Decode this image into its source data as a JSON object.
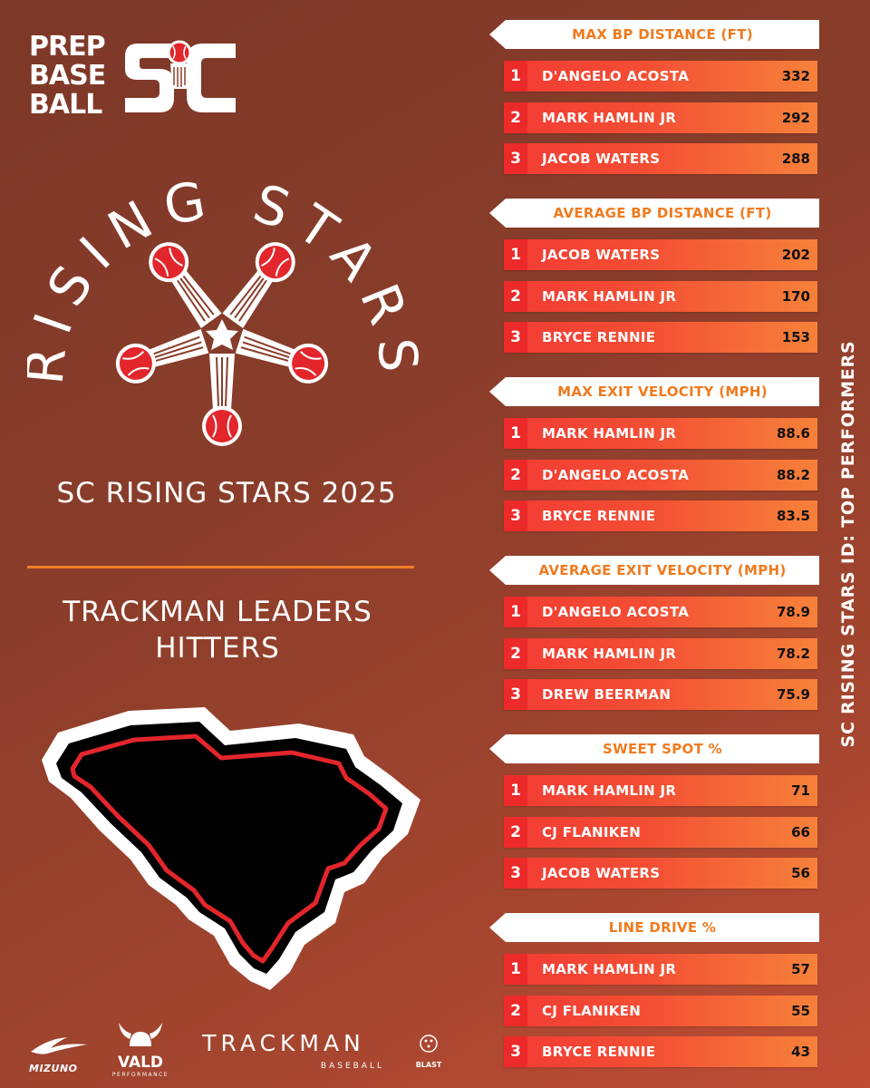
{
  "brand": {
    "logo_lines": [
      "PREP",
      "BASE",
      "BALL"
    ],
    "logo_state": "SC"
  },
  "emblem": {
    "arc_text": "RISING STARS"
  },
  "event_title": "SC RISING STARS 2025",
  "section_title_lines": [
    "TRACKMAN LEADERS",
    "HITTERS"
  ],
  "vertical_title": "SC RISING STARS ID: TOP PERFORMERS",
  "colors": {
    "accent_orange": "#f07a1e",
    "row_red": "#f33a34",
    "row_orange": "#f6813a",
    "map_outline_red": "#e2262c",
    "background": "#8a3d2a"
  },
  "sponsors": {
    "mizuno": "MIZUNO",
    "vald": "VALD",
    "vald_sub": "PERFORMANCE",
    "trackman": "TRACKMAN",
    "trackman_sub": "BASEBALL",
    "blast": "BLAST"
  },
  "leaderboards": [
    {
      "title": "MAX BP DISTANCE (FT)",
      "rows": [
        {
          "rank": "1",
          "name": "D'ANGELO ACOSTA",
          "value": "332"
        },
        {
          "rank": "2",
          "name": "MARK HAMLIN JR",
          "value": "292"
        },
        {
          "rank": "3",
          "name": "JACOB WATERS",
          "value": "288"
        }
      ]
    },
    {
      "title": "AVERAGE BP DISTANCE (FT)",
      "rows": [
        {
          "rank": "1",
          "name": "JACOB WATERS",
          "value": "202"
        },
        {
          "rank": "2",
          "name": "MARK HAMLIN JR",
          "value": "170"
        },
        {
          "rank": "3",
          "name": "BRYCE RENNIE",
          "value": "153"
        }
      ]
    },
    {
      "title": "MAX EXIT VELOCITY (MPH)",
      "rows": [
        {
          "rank": "1",
          "name": "MARK HAMLIN JR",
          "value": "88.6"
        },
        {
          "rank": "2",
          "name": "D'ANGELO ACOSTA",
          "value": "88.2"
        },
        {
          "rank": "3",
          "name": "BRYCE RENNIE",
          "value": "83.5"
        }
      ]
    },
    {
      "title": "AVERAGE EXIT VELOCITY (MPH)",
      "rows": [
        {
          "rank": "1",
          "name": "D'ANGELO ACOSTA",
          "value": "78.9"
        },
        {
          "rank": "2",
          "name": "MARK HAMLIN JR",
          "value": "78.2"
        },
        {
          "rank": "3",
          "name": "DREW BEERMAN",
          "value": "75.9"
        }
      ]
    },
    {
      "title": "SWEET SPOT %",
      "rows": [
        {
          "rank": "1",
          "name": "MARK HAMLIN JR",
          "value": "71"
        },
        {
          "rank": "2",
          "name": "CJ FLANIKEN",
          "value": "66"
        },
        {
          "rank": "3",
          "name": "JACOB WATERS",
          "value": "56"
        }
      ]
    },
    {
      "title": "LINE DRIVE %",
      "rows": [
        {
          "rank": "1",
          "name": "MARK HAMLIN JR",
          "value": "57"
        },
        {
          "rank": "2",
          "name": "CJ FLANIKEN",
          "value": "55"
        },
        {
          "rank": "3",
          "name": "BRYCE RENNIE",
          "value": "43"
        }
      ]
    }
  ]
}
